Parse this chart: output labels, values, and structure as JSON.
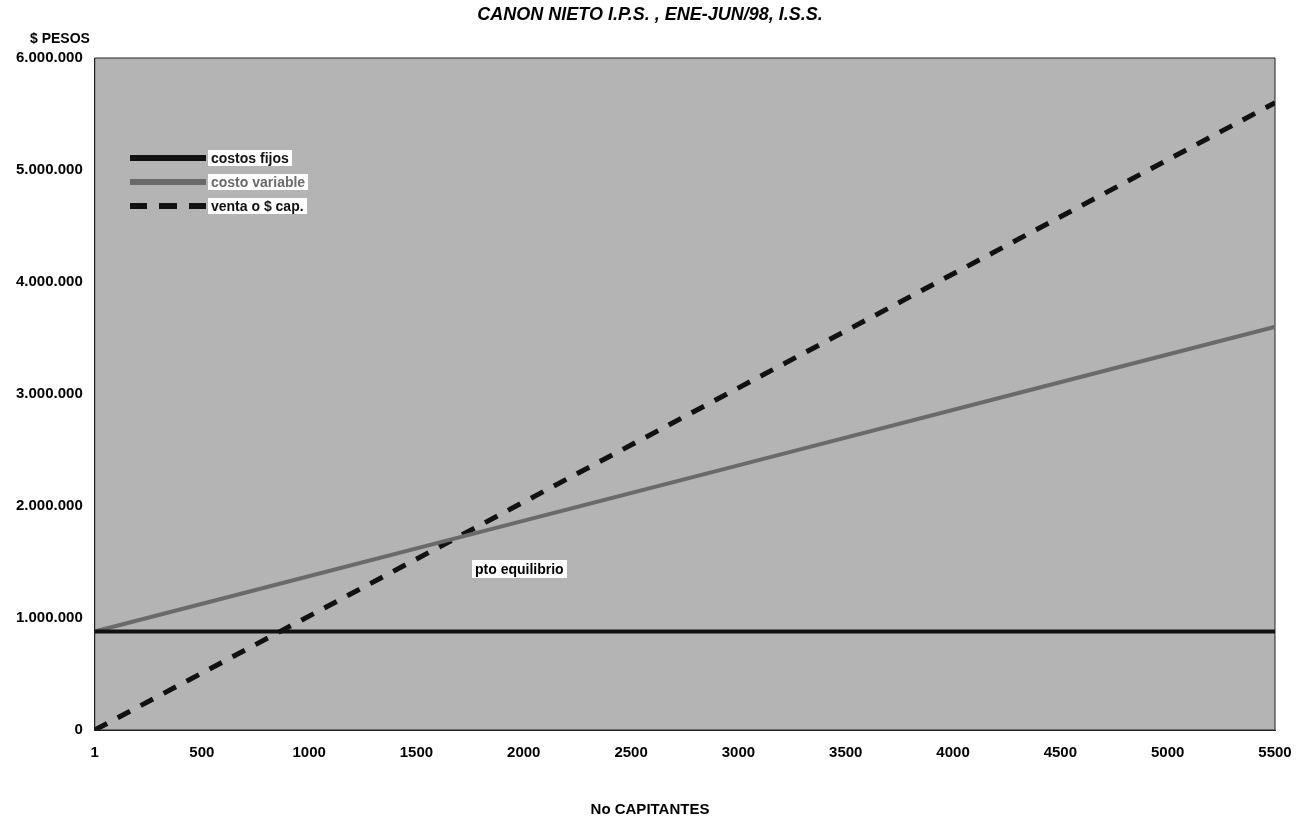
{
  "chart_data": {
    "type": "line",
    "title": "CANON NIETO I.P.S. , ENE-JUN/98, I.S.S.",
    "ylabel": "$ PESOS",
    "xlabel": "No CAPITANTES",
    "x": [
      1,
      5500
    ],
    "series": [
      {
        "name": "costos fijos",
        "color": "#111111",
        "values": [
          880000,
          880000
        ],
        "line_style": "solid"
      },
      {
        "name": "costo variable",
        "color": "#6a6a6a",
        "values": [
          880000,
          3600000
        ],
        "line_style": "solid"
      },
      {
        "name": "venta o $ cap.",
        "color": "#111111",
        "values": [
          0,
          5600000
        ],
        "line_style": "dashed"
      }
    ],
    "xlim": [
      1,
      5500
    ],
    "xticks": [
      1,
      500,
      1000,
      1500,
      2000,
      2500,
      3000,
      3500,
      4000,
      4500,
      5000,
      5500
    ],
    "ylim": [
      0,
      6000000
    ],
    "yticks": [
      {
        "value": 0,
        "label": "0"
      },
      {
        "value": 1000000,
        "label": "1.000.000"
      },
      {
        "value": 2000000,
        "label": "2.000.000"
      },
      {
        "value": 3000000,
        "label": "3.000.000"
      },
      {
        "value": 4000000,
        "label": "4.000.000"
      },
      {
        "value": 5000000,
        "label": "5.000.000"
      },
      {
        "value": 6000000,
        "label": "6.000.000"
      }
    ],
    "annotations": [
      "pto equilibrio"
    ],
    "legend": "top left",
    "grid": false,
    "marker": "none"
  }
}
